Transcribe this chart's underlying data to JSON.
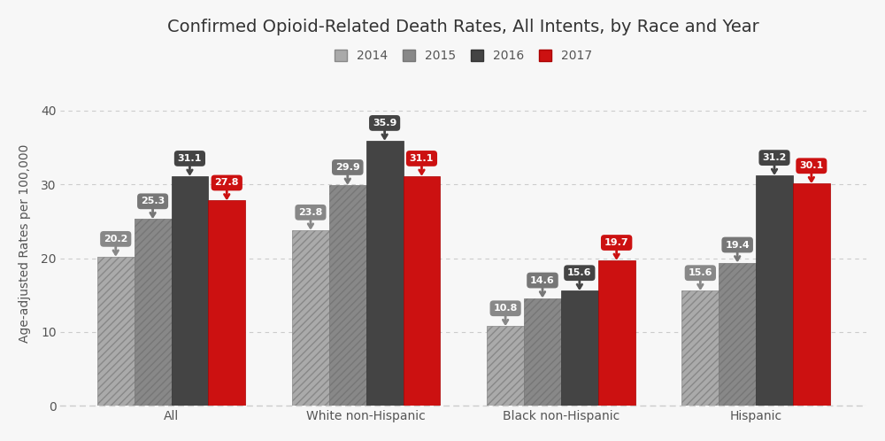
{
  "title": "Confirmed Opioid-Related Death Rates, All Intents, by Race and Year",
  "ylabel": "Age-adjusted Rates per 100,000",
  "categories": [
    "All",
    "White non-Hispanic",
    "Black non-Hispanic",
    "Hispanic"
  ],
  "years": [
    "2014",
    "2015",
    "2016",
    "2017"
  ],
  "values": {
    "2014": [
      20.2,
      23.8,
      10.8,
      15.6
    ],
    "2015": [
      25.3,
      29.9,
      14.6,
      19.4
    ],
    "2016": [
      31.1,
      35.9,
      15.6,
      31.2
    ],
    "2017": [
      27.8,
      31.1,
      19.7,
      30.1
    ]
  },
  "bar_face_colors": {
    "2014": "#aaaaaa",
    "2015": "#888888",
    "2016": "#444444",
    "2017": "#cc1111"
  },
  "bar_edge_colors": {
    "2014": "#888888",
    "2015": "#777777",
    "2016": "#333333",
    "2017": "#aa0000"
  },
  "hatch_patterns": {
    "2014": "////",
    "2015": "////",
    "2016": "",
    "2017": ""
  },
  "annotation_bg": {
    "2014": "#888888",
    "2015": "#777777",
    "2016": "#444444",
    "2017": "#cc1111"
  },
  "ylim": [
    0,
    44
  ],
  "yticks": [
    0,
    10,
    20,
    30,
    40
  ],
  "background_color": "#f7f7f7",
  "title_fontsize": 14,
  "legend_fontsize": 10,
  "axis_label_fontsize": 10,
  "tick_label_fontsize": 10,
  "annot_fontsize": 8,
  "bar_width": 0.19,
  "grid_color": "#cccccc",
  "text_color": "#555555"
}
